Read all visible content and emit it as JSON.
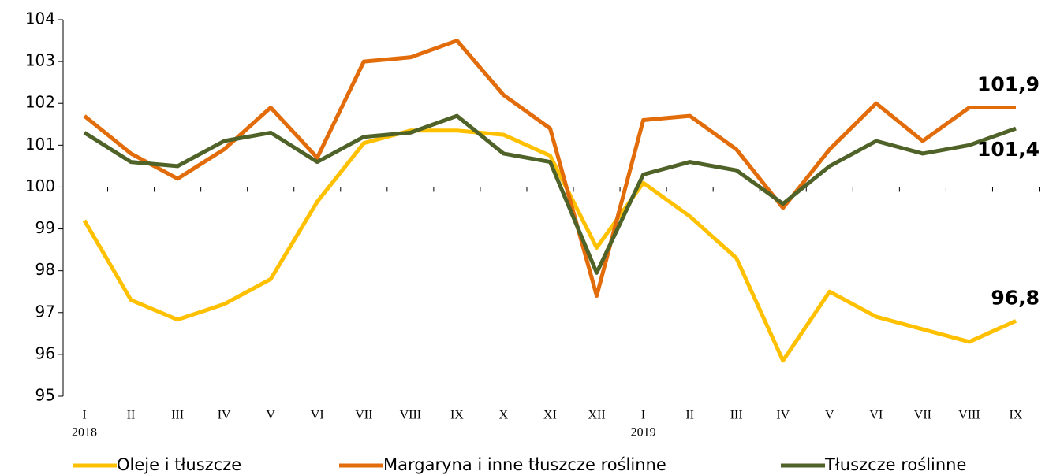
{
  "chart_data": {
    "type": "line",
    "categories": [
      "I",
      "II",
      "III",
      "IV",
      "V",
      "VI",
      "VII",
      "VIII",
      "IX",
      "X",
      "XI",
      "XII",
      "I",
      "II",
      "III",
      "IV",
      "V",
      "VI",
      "VII",
      "VIII",
      "IX"
    ],
    "category_groups": [
      "2018",
      null,
      null,
      null,
      null,
      null,
      null,
      null,
      null,
      null,
      null,
      null,
      "2019",
      null,
      null,
      null,
      null,
      null,
      null,
      null,
      null
    ],
    "series": [
      {
        "name": "Oleje i tłuszcze",
        "color": "#FFC000",
        "values": [
          99.2,
          97.3,
          96.83,
          97.2,
          97.8,
          99.65,
          101.05,
          101.35,
          101.35,
          101.25,
          100.75,
          98.55,
          100.1,
          99.3,
          98.3,
          95.85,
          97.5,
          96.9,
          96.6,
          96.3,
          96.8
        ],
        "value_labels": [
          null,
          null,
          null,
          null,
          null,
          null,
          null,
          null,
          null,
          null,
          null,
          null,
          null,
          null,
          null,
          null,
          null,
          null,
          null,
          null,
          "96,8"
        ]
      },
      {
        "name": "Margaryna i inne tłuszcze roślinne",
        "color": "#E36C0A",
        "values": [
          101.7,
          100.8,
          100.2,
          100.9,
          101.9,
          100.7,
          103.0,
          103.1,
          103.5,
          102.2,
          101.4,
          97.4,
          101.6,
          101.7,
          100.9,
          99.5,
          100.9,
          102.0,
          101.1,
          101.9,
          101.9
        ],
        "value_labels": [
          null,
          null,
          null,
          null,
          null,
          null,
          null,
          null,
          null,
          null,
          null,
          null,
          null,
          null,
          null,
          null,
          null,
          null,
          null,
          null,
          "101,9"
        ]
      },
      {
        "name": "Tłuszcze roślinne",
        "color": "#4F6228",
        "values": [
          101.3,
          100.6,
          100.5,
          101.1,
          101.3,
          100.6,
          101.2,
          101.3,
          101.7,
          100.8,
          100.6,
          97.95,
          100.3,
          100.6,
          100.4,
          99.6,
          100.5,
          101.1,
          100.8,
          101.0,
          101.4
        ],
        "value_labels": [
          null,
          null,
          null,
          null,
          null,
          null,
          null,
          null,
          null,
          null,
          null,
          null,
          null,
          null,
          null,
          null,
          null,
          null,
          null,
          null,
          "101,4"
        ]
      }
    ],
    "ylim": [
      95,
      104
    ],
    "yticks": [
      95,
      96,
      97,
      98,
      99,
      100,
      101,
      102,
      103,
      104
    ],
    "x_axis_at": 100,
    "legend": "bottom"
  }
}
